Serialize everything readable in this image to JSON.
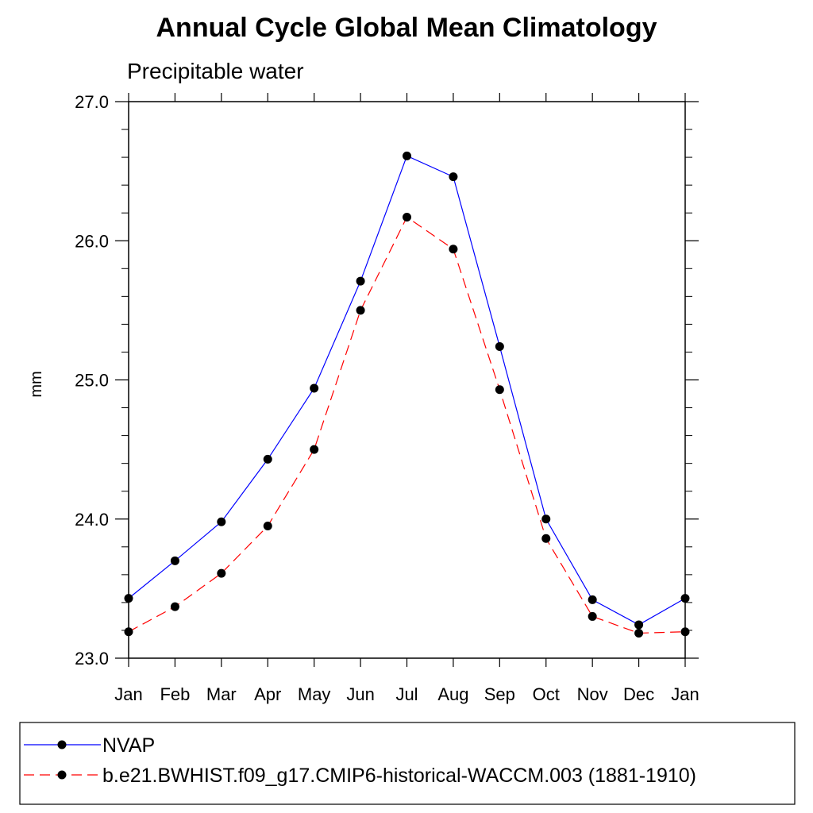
{
  "chart_data": {
    "type": "line",
    "title": "Annual Cycle Global Mean Climatology",
    "subtitle": "Precipitable water",
    "ylabel": "mm",
    "ylim": [
      23.0,
      27.0
    ],
    "y_ticks": [
      "23.0",
      "24.0",
      "25.0",
      "26.0",
      "27.0"
    ],
    "y_minor_step": 0.2,
    "categories": [
      "Jan",
      "Feb",
      "Mar",
      "Apr",
      "May",
      "Jun",
      "Jul",
      "Aug",
      "Sep",
      "Oct",
      "Nov",
      "Dec",
      "Jan"
    ],
    "grid": false,
    "legend_position": "bottom",
    "series": [
      {
        "name": "NVAP",
        "color": "#0000ff",
        "dash": "solid",
        "marker": "filled-circle",
        "values": [
          23.43,
          23.7,
          23.98,
          24.43,
          24.94,
          25.71,
          26.61,
          26.46,
          25.24,
          24.0,
          23.42,
          23.24,
          23.43
        ]
      },
      {
        "name": "b.e21.BWHIST.f09_g17.CMIP6-historical-WACCM.003 (1881-1910)",
        "color": "#ff0000",
        "dash": "dashed",
        "marker": "filled-circle",
        "values": [
          23.19,
          23.37,
          23.61,
          23.95,
          24.5,
          25.5,
          26.17,
          25.94,
          24.93,
          23.86,
          23.3,
          23.18,
          23.19
        ]
      }
    ]
  }
}
